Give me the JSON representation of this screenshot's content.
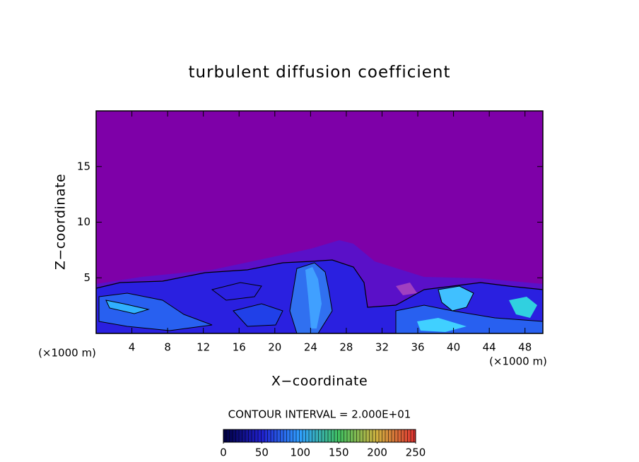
{
  "chart_data": {
    "type": "contour",
    "title": "turbulent diffusion coefficient",
    "xlabel": "X−coordinate",
    "ylabel": "Z−coordinate",
    "x_unit_label": "(×1000 m)",
    "y_unit_label": "(×1000 m)",
    "xlim": [
      0,
      50
    ],
    "xticks": [
      4,
      8,
      12,
      16,
      20,
      24,
      28,
      32,
      36,
      40,
      44,
      48
    ],
    "ylim": [
      0,
      20
    ],
    "yticks": [
      5,
      10,
      15
    ],
    "contour_interval_label": "CONTOUR INTERVAL = 2.000E+01",
    "colorbar": {
      "lim": [
        0,
        250
      ],
      "ticks": [
        0,
        50,
        100,
        150,
        200,
        250
      ],
      "colors": [
        "#000040",
        "#2020d0",
        "#30a0ff",
        "#40c060",
        "#d0b040",
        "#e03030"
      ]
    }
  }
}
